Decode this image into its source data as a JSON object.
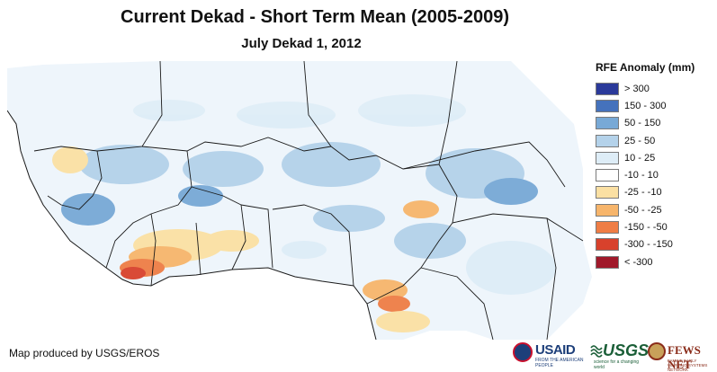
{
  "title": "Current Dekad - Short Term Mean (2005-2009)",
  "subtitle": "July Dekad 1, 2012",
  "legend": {
    "title": "RFE Anomaly (mm)",
    "items": [
      {
        "label": "> 300",
        "color": "#2b3a9a"
      },
      {
        "label": "150 - 300",
        "color": "#4572bc"
      },
      {
        "label": "50 - 150",
        "color": "#78a9d6"
      },
      {
        "label": "25 - 50",
        "color": "#b4d2ea"
      },
      {
        "label": "10 - 25",
        "color": "#deedf7"
      },
      {
        "label": "-10 - 10",
        "color": "#ffffff"
      },
      {
        "label": "-25 - -10",
        "color": "#fbe0a3"
      },
      {
        "label": "-50 - -25",
        "color": "#f7b56b"
      },
      {
        "label": "-150 - -50",
        "color": "#ef7d45"
      },
      {
        "label": "-300 - -150",
        "color": "#d8412c"
      },
      {
        "label": "< -300",
        "color": "#a0192a"
      }
    ]
  },
  "credit": "Map produced by USGS/EROS",
  "logos": {
    "usaid": "USAID",
    "usaid_tagline": "FROM THE AMERICAN PEOPLE",
    "usgs": "USGS",
    "usgs_tagline": "science for a changing world",
    "fews": "FEWS NET",
    "fews_tagline": "FAMINE EARLY WARNING SYSTEMS NETWORK"
  },
  "colors": {
    "border": "#1a1a1a",
    "land_base": "#eef5fb"
  }
}
